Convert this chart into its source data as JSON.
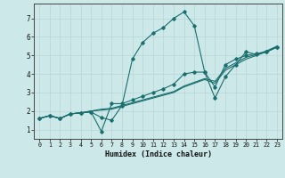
{
  "xlabel": "Humidex (Indice chaleur)",
  "xlim": [
    -0.5,
    23.5
  ],
  "ylim": [
    0.5,
    7.8
  ],
  "xticks": [
    0,
    1,
    2,
    3,
    4,
    5,
    6,
    7,
    8,
    9,
    10,
    11,
    12,
    13,
    14,
    15,
    16,
    17,
    18,
    19,
    20,
    21,
    22,
    23
  ],
  "yticks": [
    1,
    2,
    3,
    4,
    5,
    6,
    7
  ],
  "bg_color": "#cce8e8",
  "line_color": "#1a6e6e",
  "grid_color_major": "#b8d4d4",
  "grid_color_minor": "#d4e8e8",
  "line1_x": [
    0,
    1,
    2,
    3,
    4,
    5,
    6,
    7,
    8,
    9,
    10,
    11,
    12,
    13,
    14,
    15,
    16,
    17,
    18,
    19,
    20,
    21,
    22,
    23
  ],
  "line1_y": [
    1.6,
    1.75,
    1.6,
    1.85,
    1.9,
    1.95,
    1.65,
    1.5,
    2.3,
    4.8,
    5.7,
    6.2,
    6.5,
    7.0,
    7.35,
    6.6,
    4.1,
    2.7,
    3.85,
    4.5,
    5.2,
    5.05,
    5.2,
    5.45
  ],
  "line2_x": [
    0,
    1,
    2,
    3,
    4,
    5,
    6,
    7,
    8,
    9,
    10,
    11,
    12,
    13,
    14,
    15,
    16,
    17,
    18,
    19,
    20,
    21,
    22,
    23
  ],
  "line2_y": [
    1.6,
    1.75,
    1.6,
    1.85,
    1.9,
    1.95,
    0.9,
    2.4,
    2.4,
    2.6,
    2.8,
    3.0,
    3.2,
    3.45,
    4.0,
    4.1,
    4.1,
    3.3,
    4.5,
    4.8,
    5.0,
    5.1,
    5.2,
    5.45
  ],
  "line3_x": [
    0,
    1,
    2,
    3,
    4,
    5,
    6,
    7,
    8,
    9,
    10,
    11,
    12,
    13,
    14,
    15,
    16,
    17,
    18,
    19,
    20,
    21,
    22,
    23
  ],
  "line3_y": [
    1.6,
    1.75,
    1.6,
    1.85,
    1.9,
    2.0,
    2.05,
    2.1,
    2.25,
    2.4,
    2.55,
    2.7,
    2.85,
    3.0,
    3.3,
    3.5,
    3.7,
    3.5,
    4.2,
    4.5,
    4.8,
    5.0,
    5.2,
    5.45
  ],
  "line4_x": [
    0,
    1,
    2,
    3,
    4,
    5,
    6,
    7,
    8,
    9,
    10,
    11,
    12,
    13,
    14,
    15,
    16,
    17,
    18,
    19,
    20,
    21,
    22,
    23
  ],
  "line4_y": [
    1.6,
    1.75,
    1.6,
    1.85,
    1.9,
    2.0,
    2.1,
    2.15,
    2.3,
    2.45,
    2.6,
    2.75,
    2.9,
    3.05,
    3.35,
    3.55,
    3.75,
    3.6,
    4.3,
    4.6,
    4.9,
    5.05,
    5.25,
    5.5
  ]
}
